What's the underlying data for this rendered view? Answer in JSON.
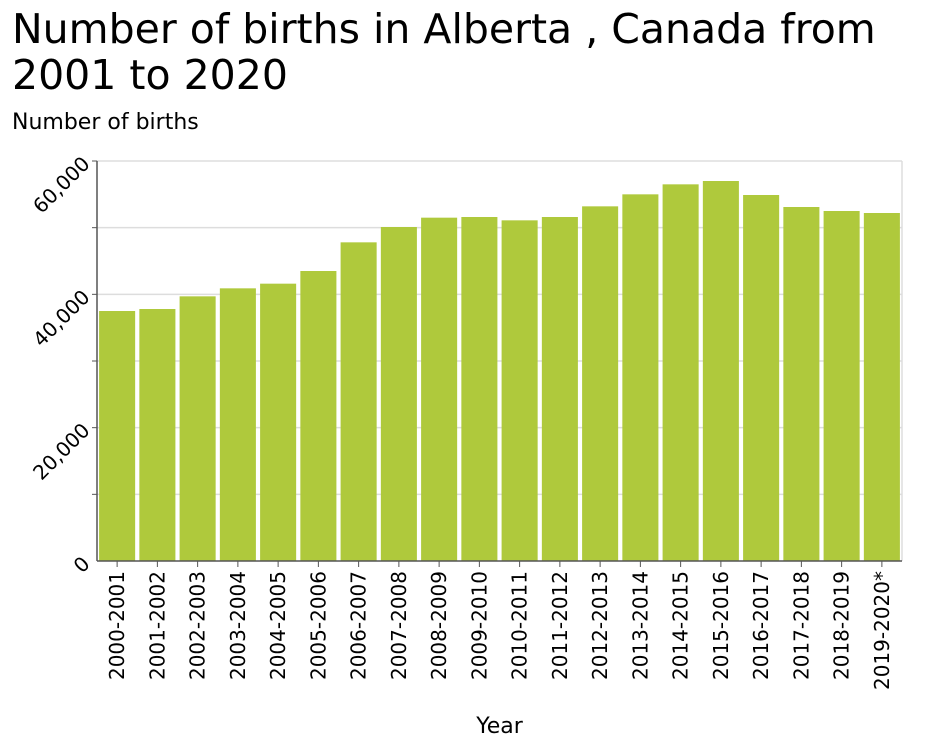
{
  "chart_data": {
    "type": "bar",
    "title": "Number of births in Alberta , Canada from 2001 to 2020",
    "ylabel": "Number of births",
    "xlabel": "Year",
    "categories": [
      "2000-2001",
      "2001-2002",
      "2002-2003",
      "2003-2004",
      "2004-2005",
      "2005-2006",
      "2006-2007",
      "2007-2008",
      "2008-2009",
      "2009-2010",
      "2010-2011",
      "2011-2012",
      "2012-2013",
      "2013-2014",
      "2014-2015",
      "2015-2016",
      "2016-2017",
      "2017-2018",
      "2018-2019",
      "2019-2020*"
    ],
    "values": [
      37500,
      37800,
      39700,
      40900,
      41600,
      43500,
      47800,
      50100,
      51500,
      51600,
      51100,
      51600,
      53200,
      55000,
      56500,
      57000,
      54900,
      53100,
      52500,
      52200
    ],
    "ylim": [
      0,
      60000
    ],
    "yticks": [
      0,
      20000,
      40000,
      60000
    ],
    "ytick_labels": [
      "0",
      "20,000",
      "40,000",
      "60,000"
    ],
    "minor_yticks": [
      10000,
      30000,
      50000
    ],
    "grid": true,
    "bar_color": "#afc93c",
    "grid_color": "#dddddd"
  }
}
